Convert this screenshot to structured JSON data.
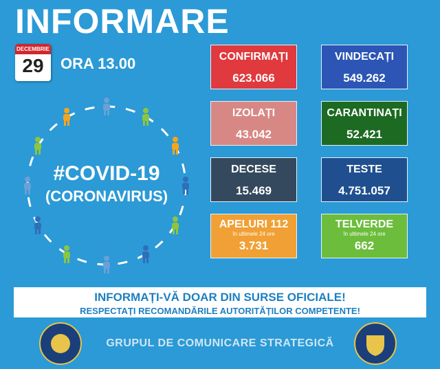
{
  "header": {
    "title": "INFORMARE",
    "month": "DECEMBRIE",
    "day": "29",
    "time": "ORA 13.00"
  },
  "emblem": {
    "tag": "#COVID-19",
    "subtitle": "(CORONAVIRUS)"
  },
  "boxes": [
    {
      "title": "CONFIRMAȚI",
      "value": "623.066"
    },
    {
      "title": "VINDECAȚI",
      "value": "549.262"
    },
    {
      "title": "IZOLAȚI",
      "value": "43.042"
    },
    {
      "title": "CARANTINAȚI",
      "value": "52.421"
    },
    {
      "title": "DECESE",
      "value": "15.469"
    },
    {
      "title": "TESTE",
      "value": "4.751.057"
    },
    {
      "title": "APELURI 112",
      "note": "în ultimele 24 ore",
      "value": "3.731"
    },
    {
      "title": "TELVERDE",
      "note": "în ultimele 24 ore",
      "value": "662"
    }
  ],
  "banner": {
    "line1": "INFORMAȚI-VĂ DOAR DIN SURSE OFICIALE!",
    "line2": "RESPECTAȚI RECOMANDĂRILE AUTORITĂȚILOR COMPETENTE!"
  },
  "footer": {
    "text": "GRUPUL DE COMUNICARE STRATEGICĂ"
  }
}
